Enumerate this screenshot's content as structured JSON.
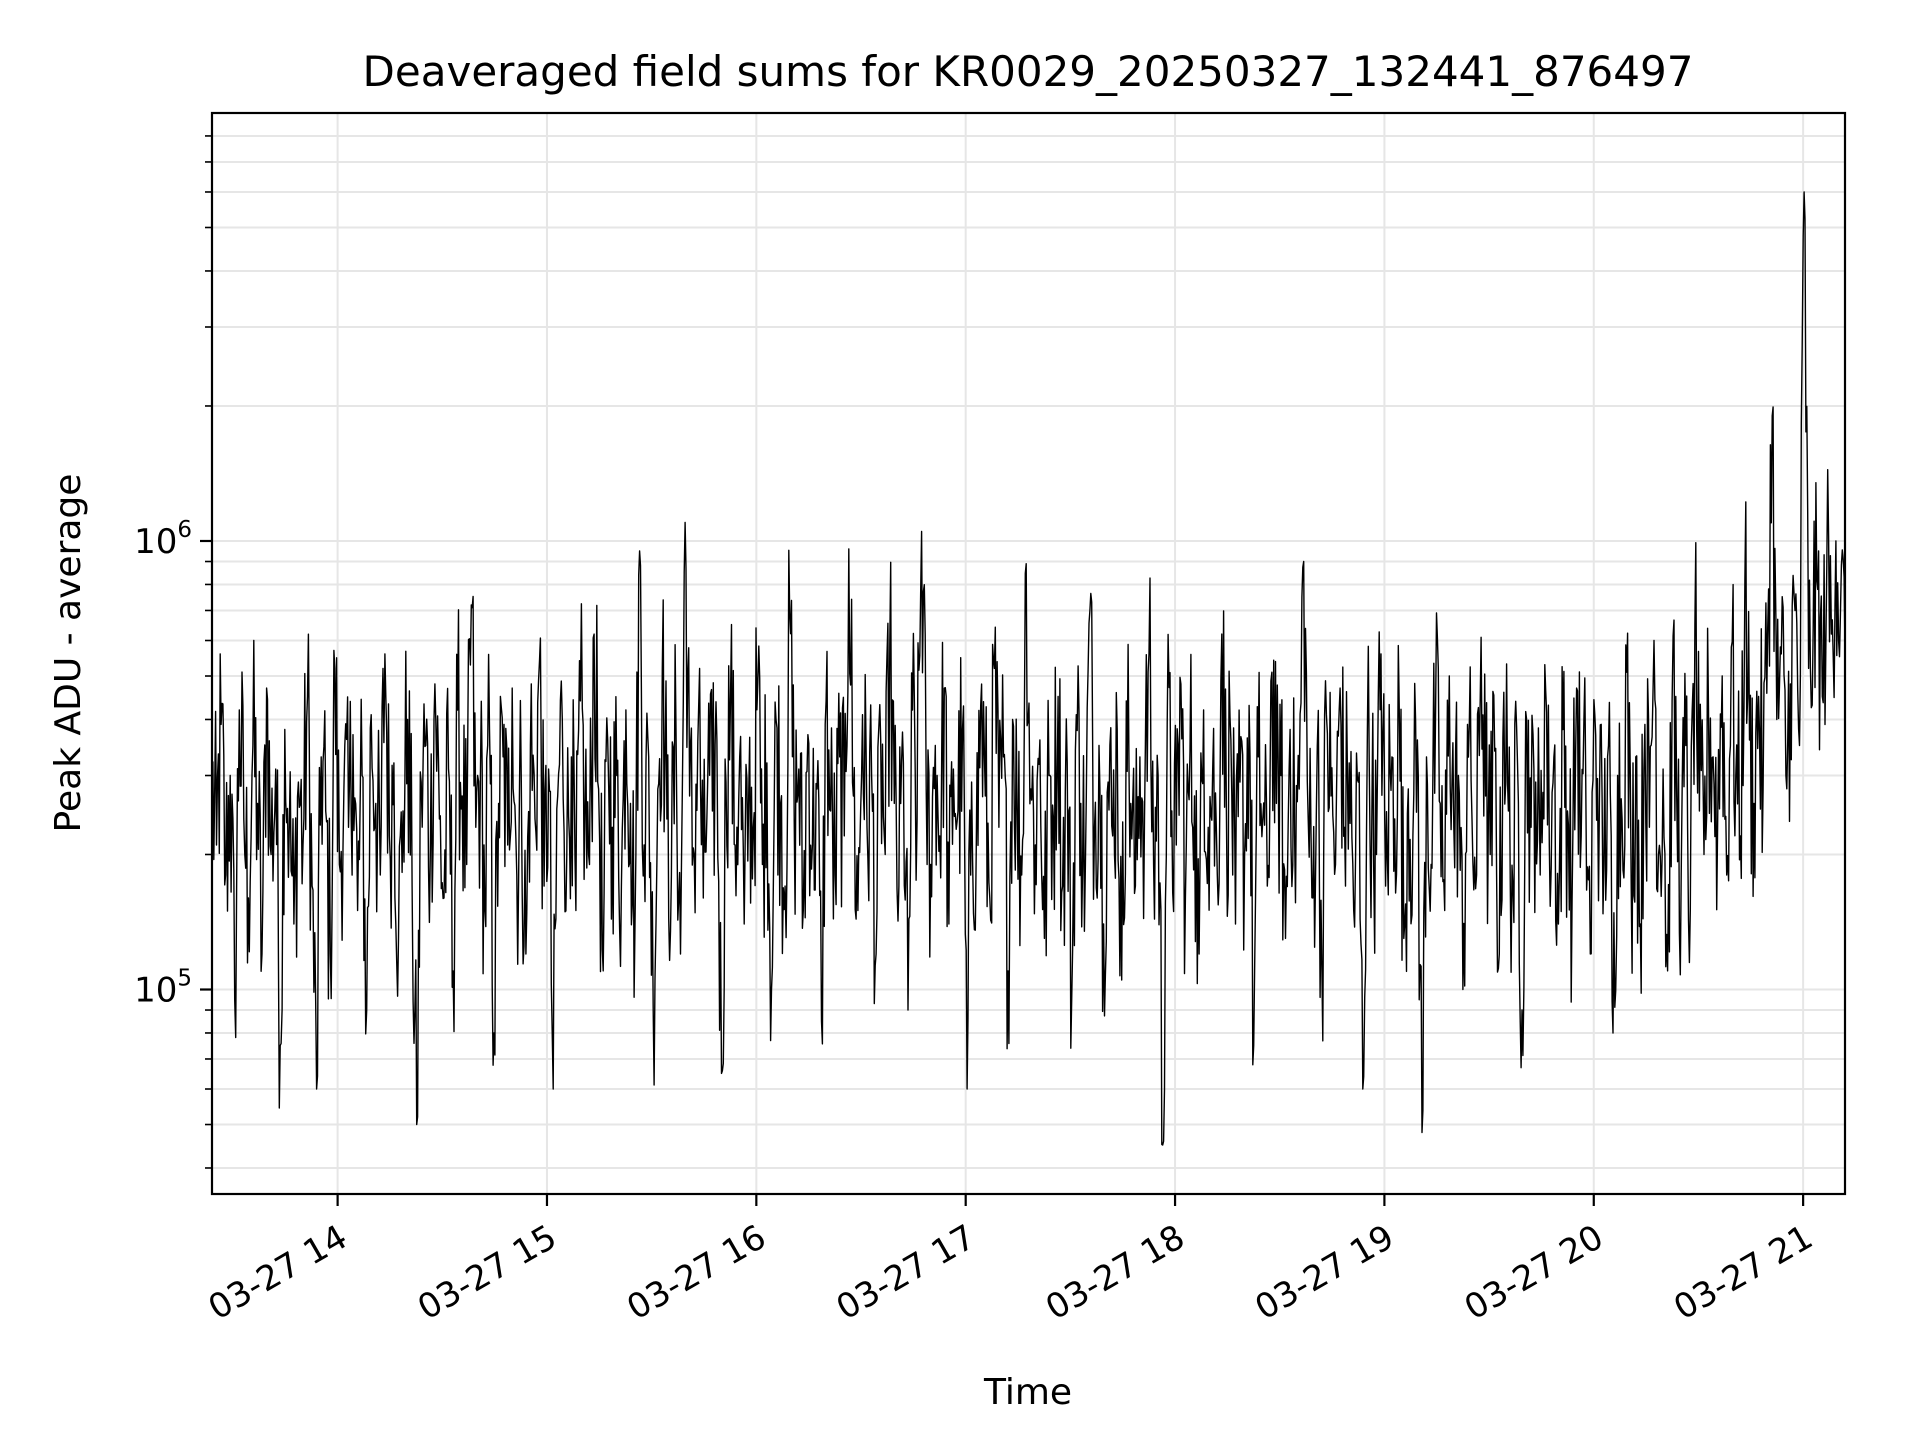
{
  "chart_data": {
    "type": "line",
    "title": "Deaveraged field sums for KR0029_20250327_132441_876497",
    "xlabel": "Time",
    "ylabel": "Peak ADU - average",
    "x_axis_type": "datetime",
    "y_scale": "log",
    "xlim": [
      "2025-03-27 13:24",
      "2025-03-27 21:12"
    ],
    "ylim": [
      35000,
      9000000
    ],
    "x_ticks": [
      {
        "value": "2025-03-27 14:00",
        "label": "03-27 14"
      },
      {
        "value": "2025-03-27 15:00",
        "label": "03-27 15"
      },
      {
        "value": "2025-03-27 16:00",
        "label": "03-27 16"
      },
      {
        "value": "2025-03-27 17:00",
        "label": "03-27 17"
      },
      {
        "value": "2025-03-27 18:00",
        "label": "03-27 18"
      },
      {
        "value": "2025-03-27 19:00",
        "label": "03-27 19"
      },
      {
        "value": "2025-03-27 20:00",
        "label": "03-27 20"
      },
      {
        "value": "2025-03-27 21:00",
        "label": "03-27 21"
      }
    ],
    "y_ticks": [
      {
        "value": 100000,
        "base": "10",
        "exponent": "5"
      },
      {
        "value": 1000000,
        "base": "10",
        "exponent": "6"
      }
    ],
    "grid": true,
    "colors": {
      "line": "#000000",
      "grid": "#e6e6e6",
      "axes": "#000000"
    },
    "series": [
      {
        "x_start": "2025-03-27 13:24",
        "x_end": "2025-03-27 21:12",
        "y_approx": [
          280000,
          210000,
          390000,
          180000,
          300000,
          95000,
          420000,
          240000,
          160000,
          350000,
          260000,
          120000,
          470000,
          200000,
          310000,
          75000,
          380000,
          230000,
          140000,
          290000,
          210000,
          450000,
          170000,
          60000,
          330000,
          250000,
          120000,
          520000,
          190000,
          280000,
          230000,
          370000,
          150000,
          300000,
          90000,
          410000,
          260000,
          180000,
          560000,
          220000,
          320000,
          130000,
          250000,
          400000,
          170000,
          50000,
          290000,
          350000,
          200000,
          480000,
          240000,
          160000,
          310000,
          110000,
          420000,
          270000,
          190000,
          720000,
          230000,
          300000,
          150000,
          380000,
          80000,
          260000,
          330000,
          210000,
          470000,
          180000,
          290000,
          120000,
          350000,
          240000,
          540000,
          170000,
          310000,
          60000,
          270000,
          400000,
          200000,
          330000,
          150000,
          440000,
          250000,
          190000,
          620000,
          280000,
          110000,
          360000,
          230000,
          300000,
          170000,
          420000,
          260000,
          140000,
          950000,
          210000,
          330000,
          90000,
          280000,
          520000,
          240000,
          180000,
          380000,
          120000,
          1100000,
          270000,
          200000,
          430000,
          160000,
          300000,
          250000,
          360000,
          65000,
          290000,
          460000,
          210000,
          330000,
          140000,
          280000,
          230000,
          480000,
          190000,
          320000,
          100000,
          400000,
          260000,
          170000,
          690000,
          240000,
          310000,
          150000,
          370000,
          210000,
          280000,
          85000,
          440000,
          250000,
          180000,
          330000,
          220000,
          960000,
          270000,
          150000,
          410000,
          230000,
          300000,
          120000,
          360000,
          200000,
          590000,
          260000,
          170000,
          320000,
          90000,
          420000,
          240000,
          1050000,
          280000,
          190000,
          350000,
          220000,
          470000,
          140000,
          310000,
          250000,
          380000,
          60000,
          290000,
          200000,
          430000,
          270000,
          160000,
          520000,
          230000,
          330000,
          110000,
          400000,
          250000,
          180000,
          890000,
          280000,
          210000,
          360000,
          130000,
          300000,
          240000,
          450000,
          170000,
          320000,
          95000,
          410000,
          260000,
          190000,
          700000,
          230000,
          350000,
          140000,
          290000,
          220000,
          380000,
          105000,
          440000,
          260000,
          170000,
          330000,
          240000,
          560000,
          190000,
          300000,
          45000,
          390000,
          250000,
          210000,
          480000,
          160000,
          340000,
          270000,
          120000,
          420000,
          230000,
          310000,
          180000,
          620000,
          250000,
          360000,
          140000,
          290000,
          200000,
          430000,
          75000,
          330000,
          240000,
          170000,
          510000,
          260000,
          300000,
          130000,
          380000,
          220000,
          280000,
          900000,
          240000,
          160000,
          350000,
          110000,
          410000,
          270000,
          190000,
          470000,
          230000,
          320000,
          150000,
          290000,
          60000,
          380000,
          250000,
          200000,
          560000,
          170000,
          310000,
          240000,
          430000,
          130000,
          280000,
          220000,
          360000,
          48000,
          330000,
          190000,
          420000,
          260000,
          150000,
          500000,
          230000,
          300000,
          100000,
          390000,
          240000,
          180000,
          610000,
          270000,
          200000,
          340000,
          120000,
          460000,
          250000,
          170000,
          320000,
          90000,
          400000,
          230000,
          290000,
          180000,
          530000,
          210000,
          330000,
          140000,
          380000,
          250000,
          160000,
          470000,
          220000,
          300000,
          120000,
          410000,
          260000,
          190000,
          350000,
          80000,
          300000,
          240000,
          510000,
          170000,
          330000,
          140000,
          390000,
          230000,
          600000,
          200000,
          310000,
          110000,
          440000,
          270000,
          180000,
          350000,
          150000,
          650000,
          250000,
          200000,
          420000,
          330000,
          230000,
          500000,
          180000,
          580000,
          300000,
          220000,
          820000,
          360000,
          260000,
          450000,
          280000,
          640000,
          1900000,
          400000,
          560000,
          300000,
          480000,
          700000,
          350000,
          6000000,
          520000,
          640000,
          780000,
          450000,
          880000,
          620000,
          1000000,
          700000,
          560000
        ]
      }
    ]
  }
}
